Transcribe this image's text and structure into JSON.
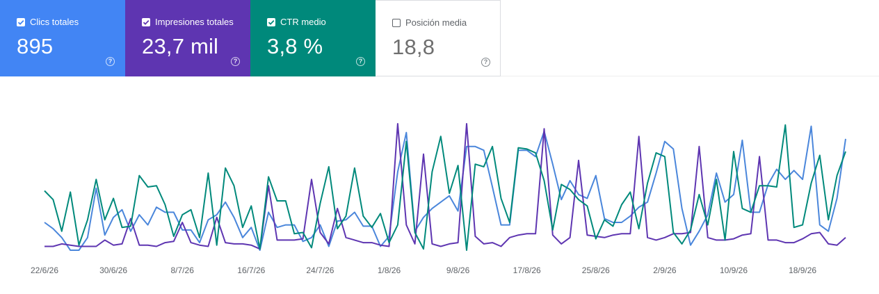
{
  "cards": [
    {
      "label": "Clics totales",
      "value": "895",
      "checked": true,
      "color": "#4285f4"
    },
    {
      "label": "Impresiones totales",
      "value": "23,7 mil",
      "checked": true,
      "color": "#5e35b1"
    },
    {
      "label": "CTR medio",
      "value": "3,8 %",
      "checked": true,
      "color": "#00897b"
    },
    {
      "label": "Posición media",
      "value": "18,8",
      "checked": false,
      "color": "#ffffff"
    }
  ],
  "help_glyph": "?",
  "chart_data": {
    "type": "line",
    "x_start": "22/6/26",
    "x_end": "25/9/26",
    "x_ticks": [
      "22/6/26",
      "30/6/26",
      "8/7/26",
      "16/7/26",
      "24/7/26",
      "1/8/26",
      "9/8/26",
      "17/8/26",
      "25/8/26",
      "2/9/26",
      "10/9/26",
      "18/9/26"
    ],
    "grid": false,
    "legend": "none",
    "series": [
      {
        "name": "Clics totales",
        "color": "#4a86db",
        "values": [
          0.22,
          0.17,
          0.1,
          0.0,
          0.0,
          0.1,
          0.49,
          0.12,
          0.26,
          0.32,
          0.15,
          0.28,
          0.2,
          0.34,
          0.3,
          0.3,
          0.16,
          0.16,
          0.06,
          0.24,
          0.28,
          0.38,
          0.26,
          0.1,
          0.18,
          0.0,
          0.3,
          0.18,
          0.2,
          0.2,
          0.07,
          0.1,
          0.2,
          0.03,
          0.23,
          0.24,
          0.3,
          0.19,
          0.19,
          0.03,
          0.11,
          0.62,
          0.93,
          0.15,
          0.26,
          0.33,
          0.38,
          0.43,
          0.31,
          0.82,
          0.82,
          0.79,
          0.5,
          0.2,
          0.2,
          0.79,
          0.79,
          0.74,
          0.94,
          0.68,
          0.4,
          0.55,
          0.44,
          0.41,
          0.59,
          0.25,
          0.22,
          0.22,
          0.27,
          0.34,
          0.38,
          0.61,
          0.86,
          0.8,
          0.33,
          0.04,
          0.15,
          0.28,
          0.61,
          0.38,
          0.44,
          0.87,
          0.3,
          0.3,
          0.52,
          0.64,
          0.56,
          0.63,
          0.56,
          0.98,
          0.2,
          0.15,
          0.41,
          0.88
        ]
      },
      {
        "name": "Impresiones totales",
        "color": "#5e35b1",
        "values": [
          0.03,
          0.03,
          0.05,
          0.04,
          0.03,
          0.03,
          0.03,
          0.08,
          0.04,
          0.05,
          0.25,
          0.04,
          0.04,
          0.03,
          0.06,
          0.07,
          0.22,
          0.06,
          0.04,
          0.03,
          0.26,
          0.06,
          0.05,
          0.05,
          0.04,
          0.01,
          0.51,
          0.08,
          0.08,
          0.08,
          0.09,
          0.56,
          0.14,
          0.05,
          0.33,
          0.1,
          0.08,
          0.06,
          0.06,
          0.04,
          0.03,
          1.0,
          0.2,
          0.05,
          0.76,
          0.05,
          0.03,
          0.05,
          0.06,
          1.0,
          0.11,
          0.05,
          0.06,
          0.03,
          0.1,
          0.12,
          0.13,
          0.13,
          0.96,
          0.12,
          0.05,
          0.1,
          0.71,
          0.12,
          0.11,
          0.1,
          0.12,
          0.13,
          0.13,
          0.9,
          0.1,
          0.08,
          0.1,
          0.13,
          0.13,
          0.14,
          0.82,
          0.1,
          0.08,
          0.08,
          0.09,
          0.12,
          0.13,
          0.74,
          0.08,
          0.08,
          0.06,
          0.06,
          0.09,
          0.13,
          0.14,
          0.05,
          0.04,
          0.1
        ]
      },
      {
        "name": "CTR medio",
        "color": "#00897b",
        "values": [
          0.47,
          0.4,
          0.15,
          0.46,
          0.04,
          0.24,
          0.56,
          0.24,
          0.41,
          0.18,
          0.19,
          0.59,
          0.5,
          0.51,
          0.36,
          0.11,
          0.28,
          0.32,
          0.1,
          0.61,
          0.04,
          0.65,
          0.51,
          0.18,
          0.35,
          0.01,
          0.58,
          0.39,
          0.39,
          0.13,
          0.14,
          0.02,
          0.37,
          0.66,
          0.17,
          0.27,
          0.65,
          0.27,
          0.18,
          0.29,
          0.06,
          0.2,
          0.86,
          0.14,
          0.01,
          0.62,
          0.9,
          0.45,
          0.67,
          0.0,
          0.68,
          0.66,
          0.82,
          0.41,
          0.22,
          0.81,
          0.8,
          0.77,
          0.55,
          0.16,
          0.52,
          0.48,
          0.4,
          0.35,
          0.09,
          0.24,
          0.19,
          0.36,
          0.46,
          0.17,
          0.53,
          0.77,
          0.74,
          0.14,
          0.05,
          0.16,
          0.44,
          0.2,
          0.56,
          0.08,
          0.78,
          0.33,
          0.3,
          0.51,
          0.51,
          0.5,
          0.99,
          0.18,
          0.2,
          0.53,
          0.75,
          0.24,
          0.59,
          0.78
        ]
      }
    ]
  }
}
